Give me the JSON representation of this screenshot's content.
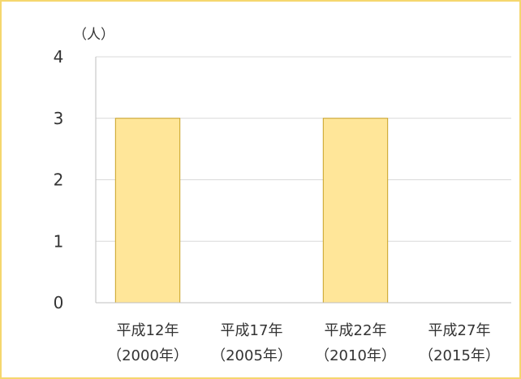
{
  "frame_color": "#f5d76e",
  "chart_data": {
    "type": "bar",
    "title": "",
    "xlabel": "",
    "ylabel": "（人）",
    "ylim": [
      0,
      4
    ],
    "yticks": [
      0,
      1,
      2,
      3,
      4
    ],
    "ytick_labels": [
      "0",
      "1",
      "2",
      "3",
      "4"
    ],
    "grid": true,
    "legend": "none",
    "categories": [
      [
        "平成12年",
        "（2000年）"
      ],
      [
        "平成17年",
        "（2005年）"
      ],
      [
        "平成22年",
        "（2010年）"
      ],
      [
        "平成27年",
        "（2015年）"
      ]
    ],
    "values": [
      3,
      0,
      3,
      0
    ],
    "bar_fill": "#ffe699",
    "bar_stroke": "#c9a227",
    "grid_color": "#d9d9d9"
  }
}
